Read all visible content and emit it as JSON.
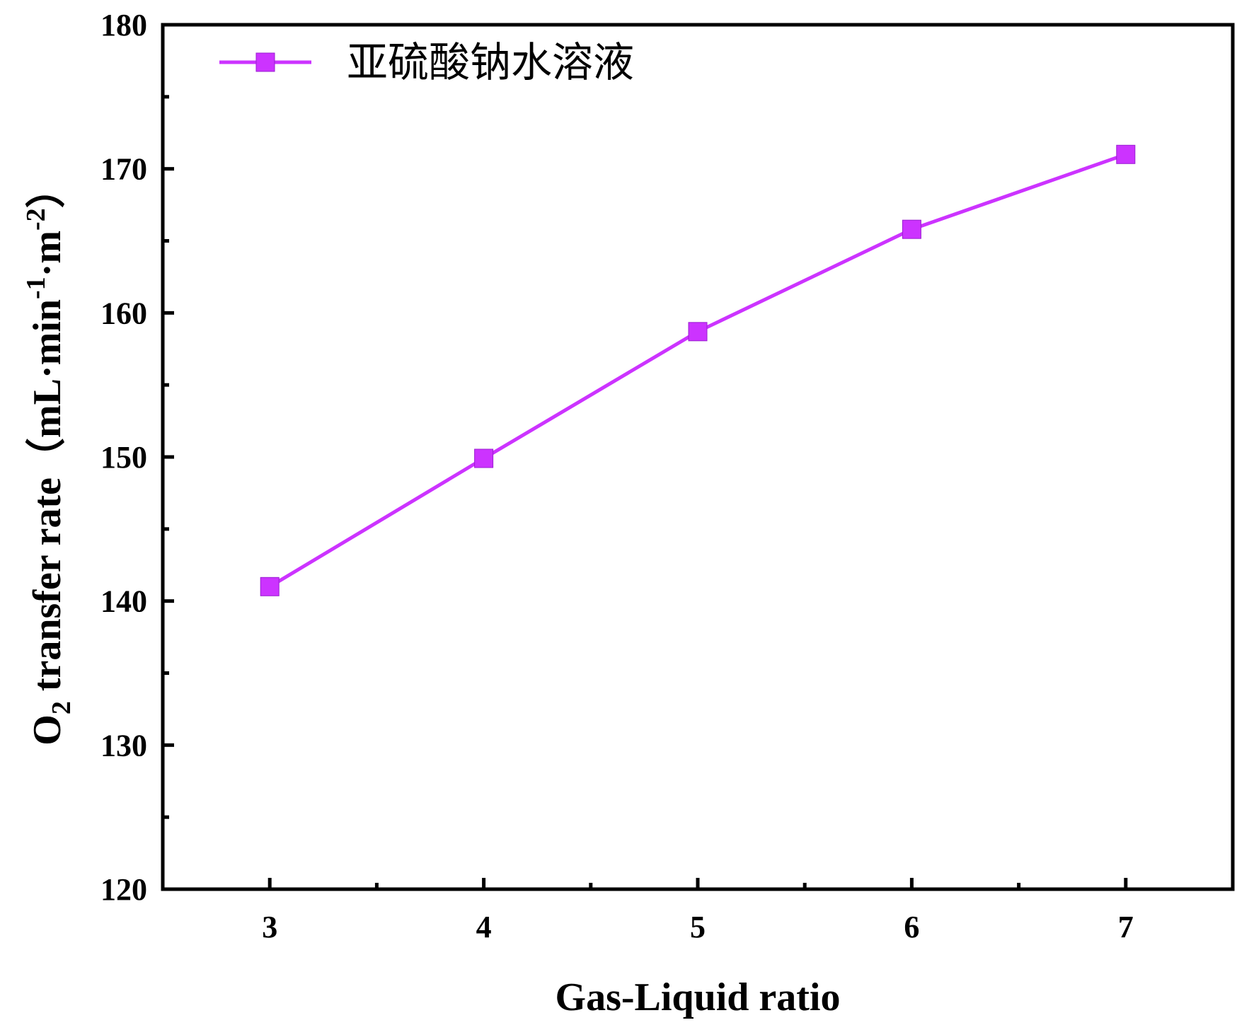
{
  "chart_data": {
    "type": "line",
    "x": [
      3,
      4,
      5,
      6,
      7
    ],
    "series": [
      {
        "name": "亚硫酸钠水溶液",
        "values": [
          141.0,
          149.9,
          158.7,
          165.8,
          171.0
        ],
        "color": "#cc33ff",
        "marker": "square"
      }
    ],
    "xlabel": "Gas-Liquid ratio",
    "ylabel": {
      "prefix": "O",
      "prefix_sub": "2",
      "main": " transfer rate（mL·min",
      "sup1": "-1",
      "mid": "·m",
      "sup2": "-2",
      "suffix": "）"
    },
    "xlim": [
      2.5,
      7.5
    ],
    "ylim": [
      120,
      180
    ],
    "x_ticks": [
      "3",
      "4",
      "5",
      "6",
      "7"
    ],
    "y_ticks": [
      "120",
      "130",
      "140",
      "150",
      "160",
      "170",
      "180"
    ],
    "grid": false,
    "legend_position": "top-left"
  }
}
